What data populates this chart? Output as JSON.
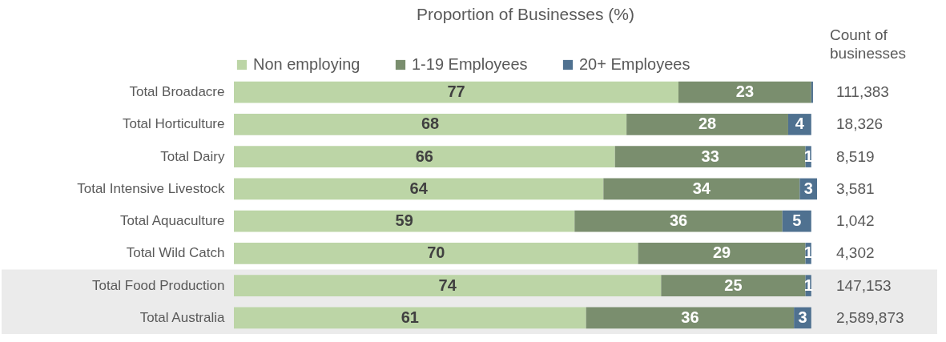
{
  "chart_data": {
    "type": "bar",
    "orientation": "horizontal",
    "stacked": true,
    "title": "Proportion of Businesses (%)",
    "categories": [
      "Total Broadacre",
      "Total Horticulture",
      "Total Dairy",
      "Total Intensive Livestock",
      "Total Aquaculture",
      "Total Wild Catch",
      "Total Food Production",
      "Total Australia"
    ],
    "series": [
      {
        "name": "Non employing",
        "color": "#bcd5a6",
        "values": [
          77,
          68,
          66,
          64,
          59,
          70,
          74,
          61
        ],
        "value_labels": [
          "77",
          "68",
          "66",
          "64",
          "59",
          "70",
          "74",
          "61"
        ]
      },
      {
        "name": "1-19 Employees",
        "color": "#7a8e6e",
        "values": [
          23,
          28,
          33,
          34,
          36,
          29,
          25,
          36
        ],
        "value_labels": [
          "23",
          "28",
          "33",
          "34",
          "36",
          "29",
          "25",
          "36"
        ]
      },
      {
        "name": "20+ Employees",
        "color": "#4f7190",
        "values": [
          0.3,
          4,
          1,
          3,
          5,
          1,
          1,
          3
        ],
        "value_labels": [
          null,
          "4",
          "1",
          "3",
          "5",
          "1",
          "1",
          "3"
        ]
      }
    ],
    "xlim": [
      0,
      101
    ],
    "legend": "top",
    "bands": [
      {
        "axis": "y",
        "from": "Total Food Production",
        "to": "Total Australia",
        "color": "#ebebeb"
      }
    ],
    "annotations": [
      "Count of businesses",
      "111,383",
      "18,326",
      "8,519",
      "3,581",
      "1,042",
      "4,302",
      "147,153",
      "2,589,873"
    ]
  }
}
